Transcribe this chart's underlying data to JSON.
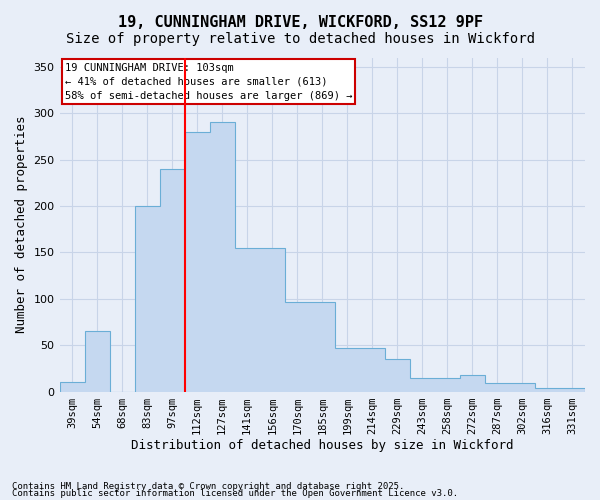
{
  "title": "19, CUNNINGHAM DRIVE, WICKFORD, SS12 9PF",
  "subtitle": "Size of property relative to detached houses in Wickford",
  "xlabel": "Distribution of detached houses by size in Wickford",
  "ylabel": "Number of detached properties",
  "footnote1": "Contains HM Land Registry data © Crown copyright and database right 2025.",
  "footnote2": "Contains public sector information licensed under the Open Government Licence v3.0.",
  "annotation_line1": "19 CUNNINGHAM DRIVE: 103sqm",
  "annotation_line2": "← 41% of detached houses are smaller (613)",
  "annotation_line3": "58% of semi-detached houses are larger (869) →",
  "categories": [
    "39sqm",
    "54sqm",
    "68sqm",
    "83sqm",
    "97sqm",
    "112sqm",
    "127sqm",
    "141sqm",
    "156sqm",
    "170sqm",
    "185sqm",
    "199sqm",
    "214sqm",
    "229sqm",
    "243sqm",
    "258sqm",
    "272sqm",
    "287sqm",
    "302sqm",
    "316sqm",
    "331sqm"
  ],
  "values": [
    10,
    65,
    0,
    200,
    240,
    280,
    290,
    155,
    155,
    97,
    97,
    47,
    47,
    35,
    15,
    15,
    18,
    9,
    9,
    4,
    4
  ],
  "bar_color": "#c5d8f0",
  "bar_edgecolor": "#6aaed6",
  "red_line_index": 5,
  "ylim": [
    0,
    360
  ],
  "yticks": [
    0,
    50,
    100,
    150,
    200,
    250,
    300,
    350
  ],
  "bg_color": "#e8eef8",
  "plot_bg_color": "#e8eef8",
  "grid_color": "#c8d4e8",
  "annotation_box_color": "#cc0000",
  "title_fontsize": 11,
  "subtitle_fontsize": 10,
  "axis_label_fontsize": 9,
  "tick_fontsize": 7.5
}
